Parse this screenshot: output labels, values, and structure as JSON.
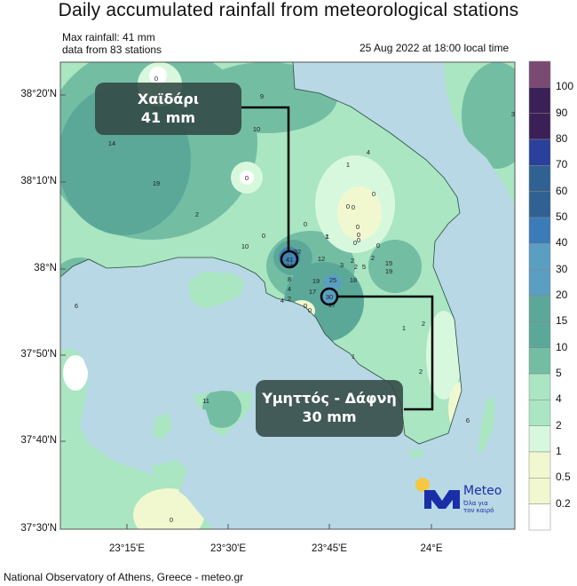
{
  "title": "Daily accumulated rainfall from meteorological stations",
  "info": {
    "max_rainfall": "Max rainfall: 41 mm",
    "stations_count": "data from 83 stations",
    "datetime": "25 Aug 2022 at 18:00 local time"
  },
  "axes": {
    "lat_labels": [
      "38°20'N",
      "38°10'N",
      "38°N",
      "37°50'N",
      "37°40'N",
      "37°30'N"
    ],
    "lon_labels": [
      "23°15'E",
      "23°30'E",
      "23°45'E",
      "24°E"
    ]
  },
  "colorbar": {
    "labels": [
      "100",
      "90",
      "80",
      "70",
      "60",
      "50",
      "40",
      "30",
      "20",
      "15",
      "10",
      "5",
      "4",
      "2",
      "1",
      "0.5",
      "0.2"
    ],
    "colors": [
      "#7b4a72",
      "#3b1f57",
      "#3b1f57",
      "#2b3f9c",
      "#2f6192",
      "#2f6192",
      "#3b7bb8",
      "#5a9ec2",
      "#5a9ec2",
      "#5ba899",
      "#5ba899",
      "#73bda3",
      "#a9e6c1",
      "#a9e6c1",
      "#d8f8dd",
      "#f1f8d0",
      "#f1f8d0",
      "#ffffff"
    ]
  },
  "callouts": [
    {
      "station": "Χαϊδάρι",
      "value": "41 mm"
    },
    {
      "station": "Υμηττός - Δάφνη",
      "value": "30 mm"
    }
  ],
  "stations": [
    "0",
    "0",
    "9",
    "10",
    "14",
    "19",
    "0",
    "2",
    "0",
    "10",
    "0",
    "0",
    "1",
    "0",
    "0",
    "0",
    "0",
    "0",
    "0",
    "0",
    "1",
    "4",
    "1",
    "3",
    "41",
    "32",
    "24",
    "12",
    "3",
    "2",
    "2",
    "5",
    "2",
    "15",
    "19",
    "8",
    "19",
    "25",
    "18",
    "4",
    "17",
    "30",
    "17",
    "2",
    "4",
    "0",
    "0",
    "1",
    "2",
    "1",
    "2",
    "11",
    "0",
    "6",
    "6"
  ],
  "logo": {
    "brand": "Meteo",
    "tagline_1": "Όλα για",
    "tagline_2": "τον καιρό"
  },
  "colors": {
    "sea": "#b7d8e4",
    "land_light": "#a9e6c1",
    "land_mid": "#73bda3",
    "land_dark": "#5ba899"
  },
  "footer": "National Observatory of Athens, Greece - meteo.gr"
}
